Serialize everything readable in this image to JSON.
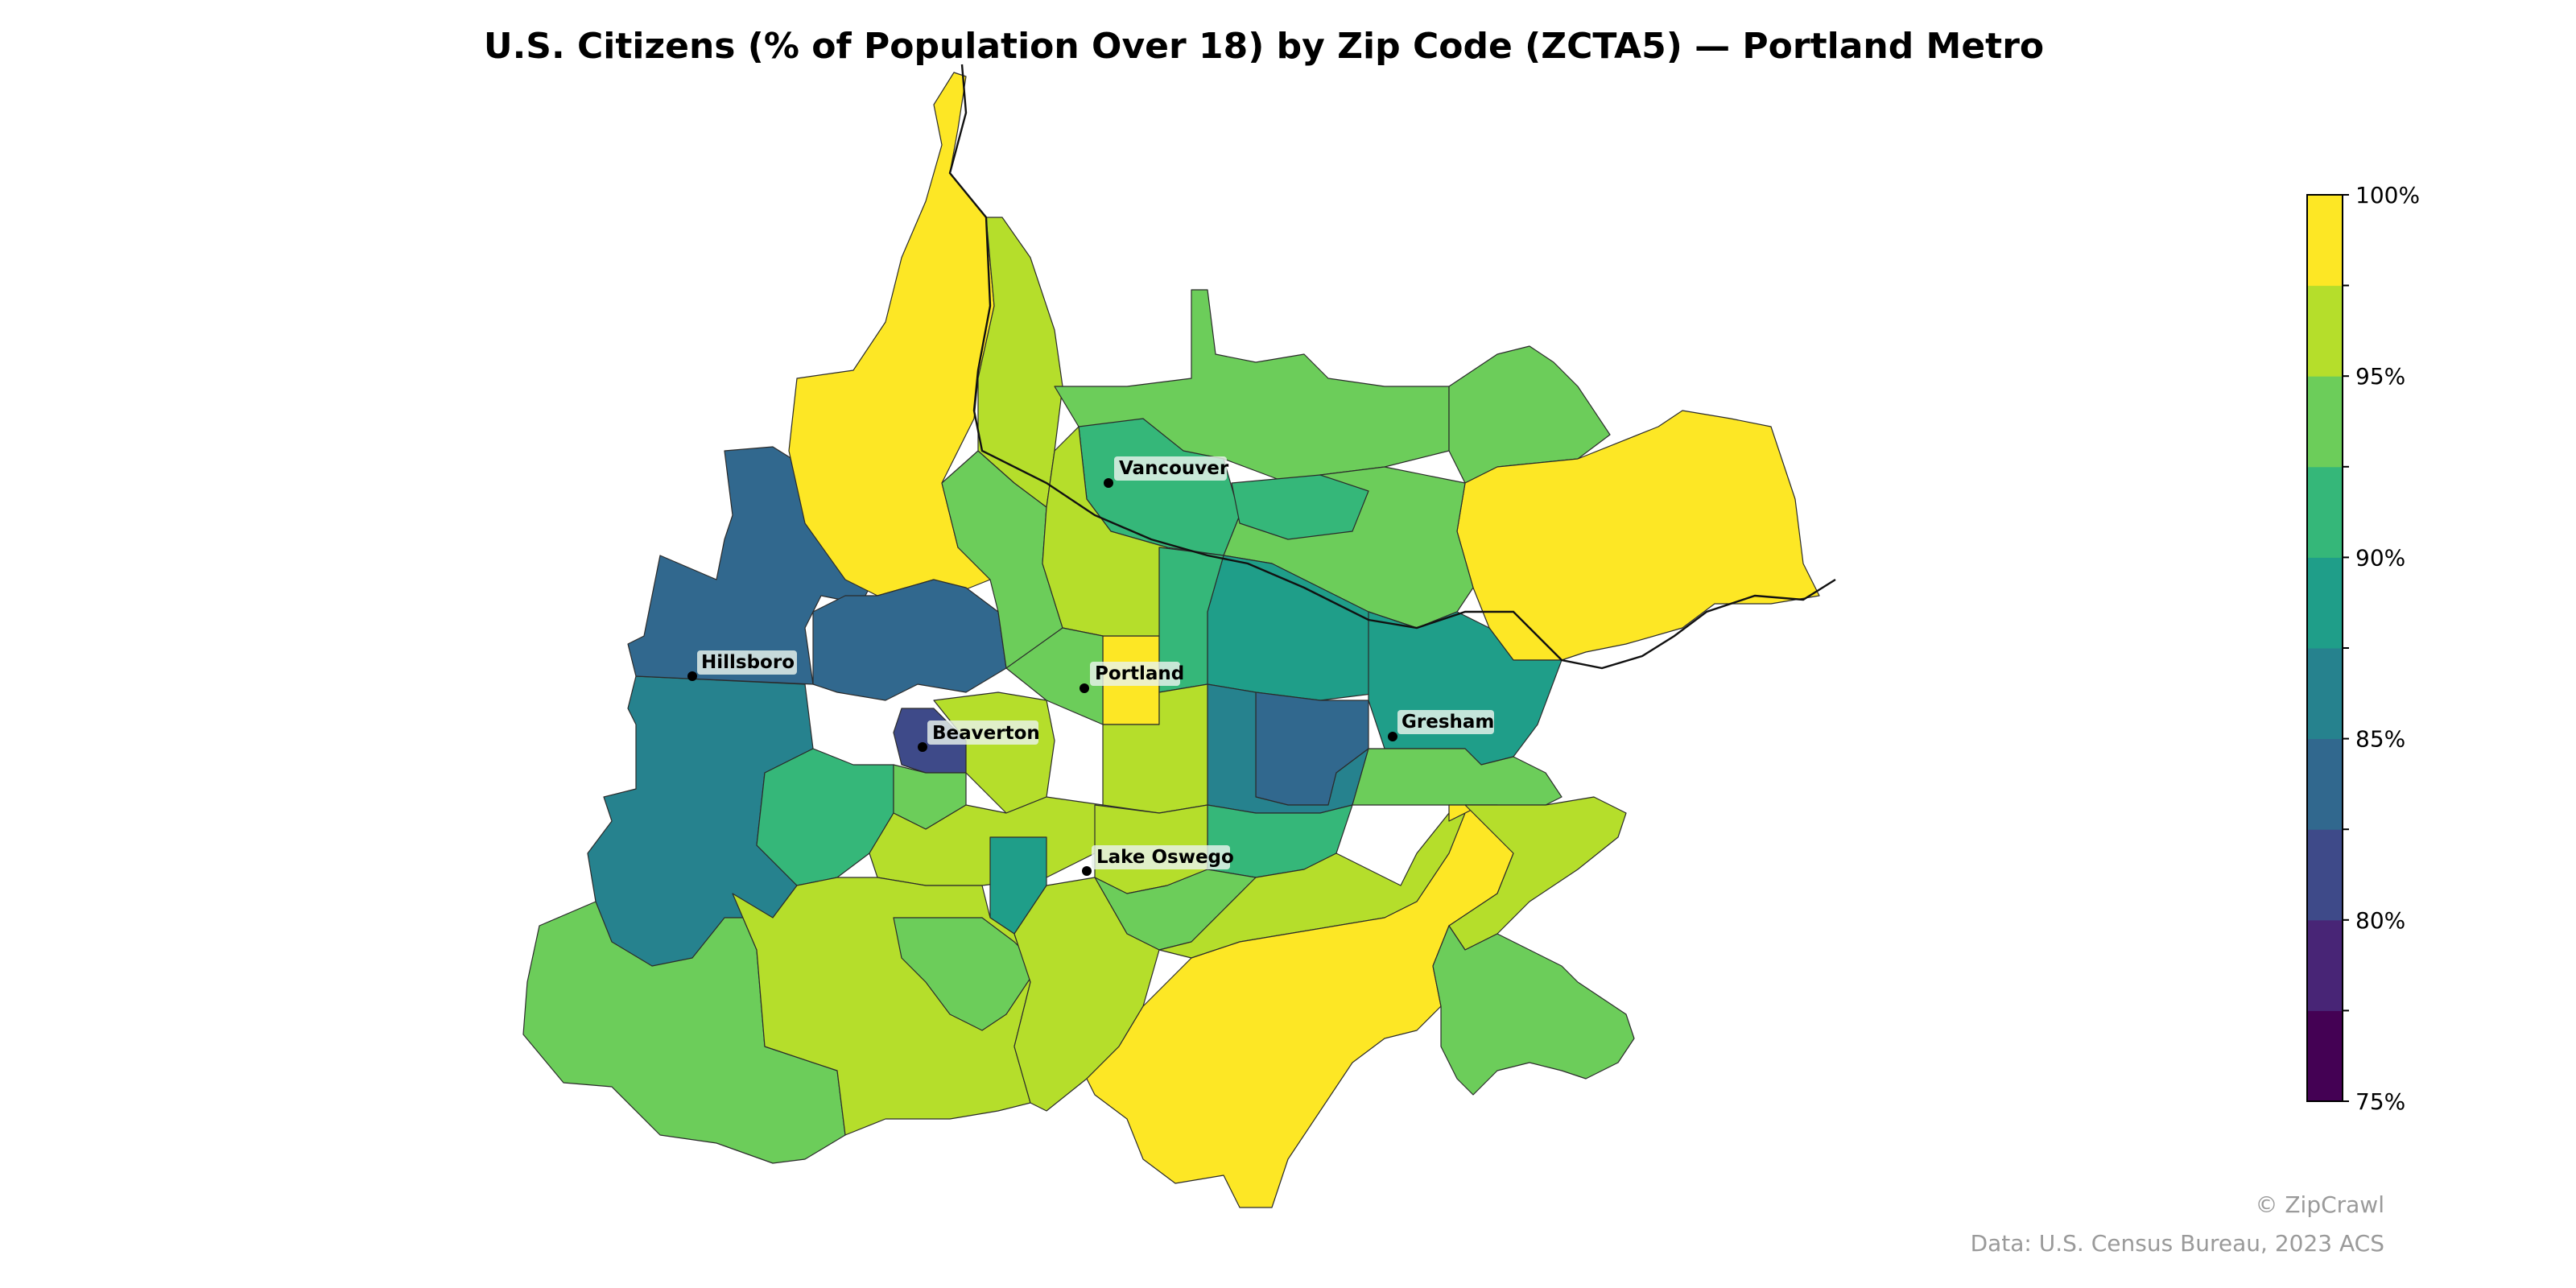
{
  "title": "U.S. Citizens (% of Population Over 18) by Zip Code (ZCTA5) — Portland Metro",
  "colors": {
    "b75": "#440154",
    "b775": "#482576",
    "b80": "#3e4a89",
    "b825": "#31688e",
    "b85": "#26828e",
    "b875": "#1f9e89",
    "b90": "#35b779",
    "b925": "#6ccd5a",
    "b95": "#b5de2b",
    "b975": "#fde725",
    "outline": "#2b2b2b"
  },
  "legend": {
    "min": 75,
    "max": 100,
    "step": 2.5,
    "ticks": [
      "75%",
      "80%",
      "85%",
      "90%",
      "95%",
      "100%"
    ],
    "colors": [
      "#440154",
      "#482576",
      "#3e4a89",
      "#31688e",
      "#26828e",
      "#1f9e89",
      "#35b779",
      "#6ccd5a",
      "#b5de2b",
      "#fde725"
    ]
  },
  "cities": [
    {
      "name": "Vancouver"
    },
    {
      "name": "Portland"
    },
    {
      "name": "Hillsboro"
    },
    {
      "name": "Beaverton"
    },
    {
      "name": "Gresham"
    },
    {
      "name": "Lake Oswego"
    }
  ],
  "credits": {
    "brand": "© ZipCrawl",
    "source": "Data: U.S. Census Bureau, 2023 ACS"
  }
}
